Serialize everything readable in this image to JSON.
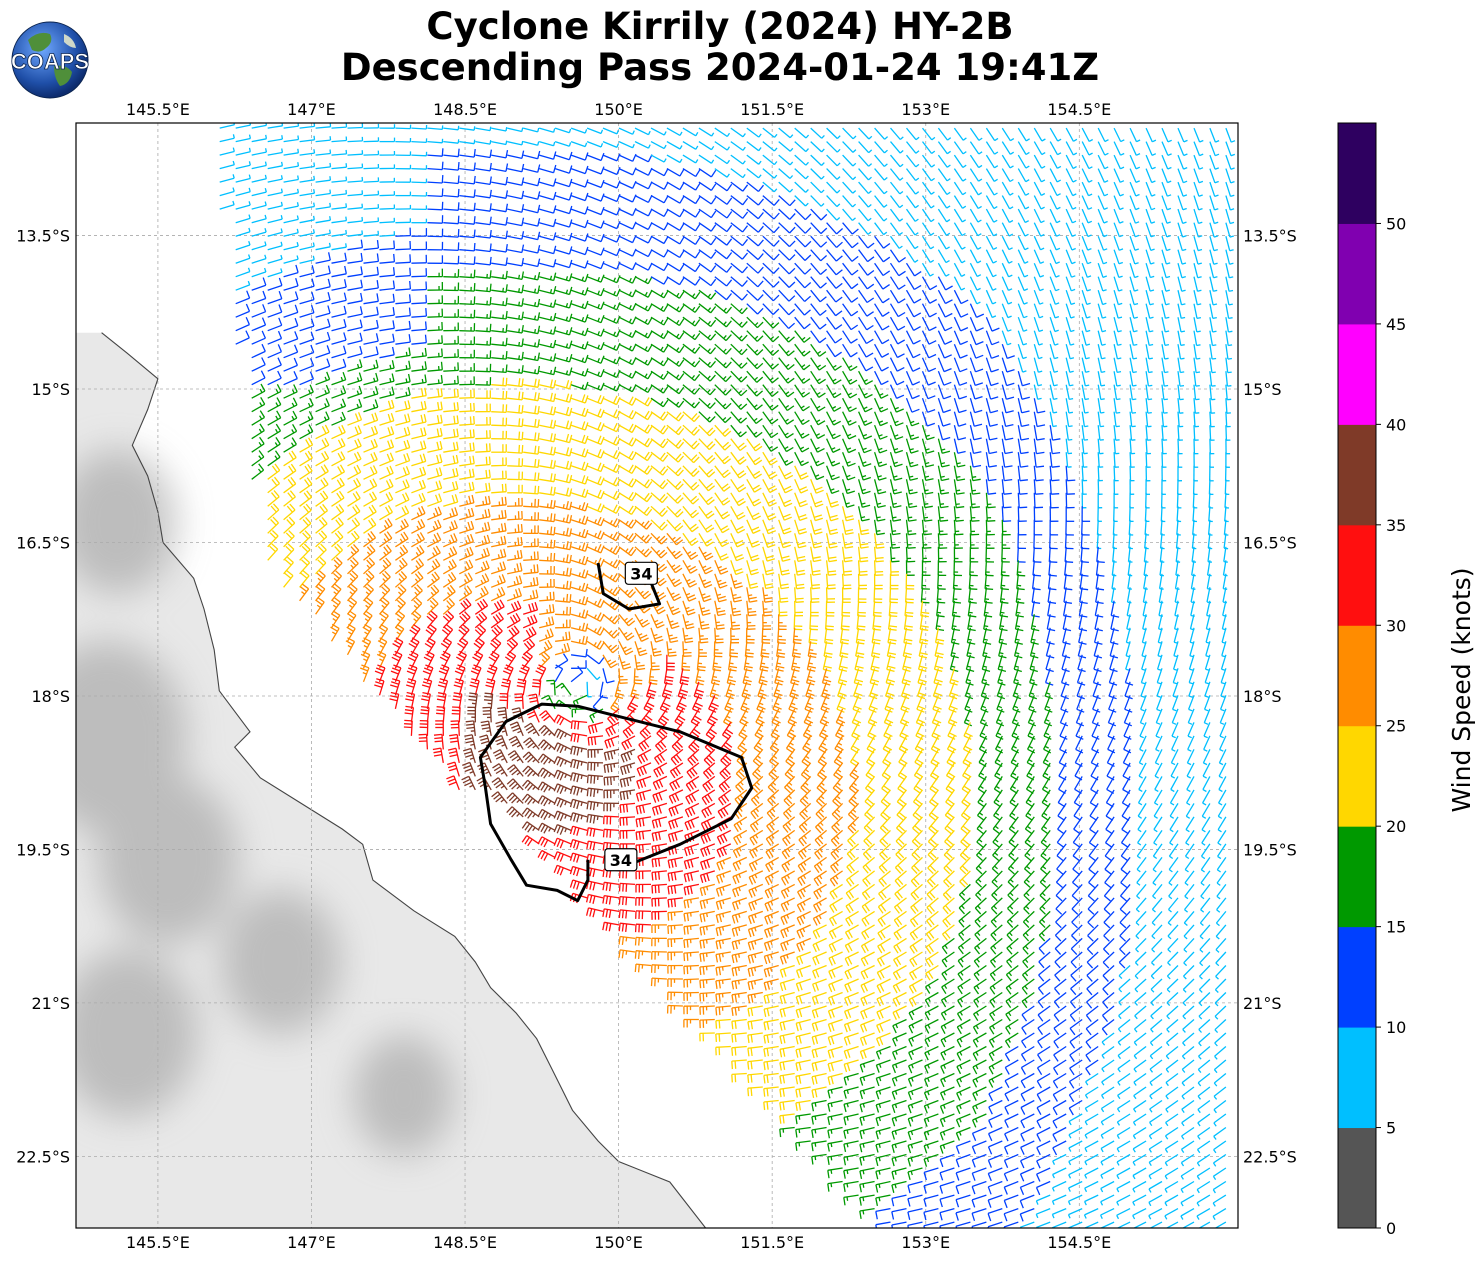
{
  "title": {
    "line1": "Cyclone Kirrily (2024) HY-2B",
    "line2": "Descending Pass 2024-01-24 19:41Z"
  },
  "logo": {
    "text": "COAPS",
    "icon": "globe-logo-icon"
  },
  "map": {
    "lon_range": [
      144.7,
      156.05
    ],
    "lat_range": [
      -23.2,
      -12.4
    ],
    "lon_ticks": [
      {
        "value": 145.5,
        "label": "145.5°E"
      },
      {
        "value": 147.0,
        "label": "147°E"
      },
      {
        "value": 148.5,
        "label": "148.5°E"
      },
      {
        "value": 150.0,
        "label": "150°E"
      },
      {
        "value": 151.5,
        "label": "151.5°E"
      },
      {
        "value": 153.0,
        "label": "153°E"
      },
      {
        "value": 154.5,
        "label": "154.5°E"
      }
    ],
    "lat_ticks": [
      {
        "value": -13.5,
        "label": "13.5°S"
      },
      {
        "value": -15.0,
        "label": "15°S"
      },
      {
        "value": -16.5,
        "label": "16.5°S"
      },
      {
        "value": -18.0,
        "label": "18°S"
      },
      {
        "value": -19.5,
        "label": "19.5°S"
      },
      {
        "value": -21.0,
        "label": "21°S"
      },
      {
        "value": -22.5,
        "label": "22.5°S"
      }
    ],
    "gridlines": true,
    "storm_center": {
      "lon": 149.6,
      "lat": -17.9
    },
    "contour_label": "34",
    "contours": [
      {
        "label": "34",
        "points": [
          [
            149.8,
            -16.7
          ],
          [
            149.85,
            -17.0
          ],
          [
            150.1,
            -17.15
          ],
          [
            150.4,
            -17.1
          ],
          [
            150.3,
            -16.85
          ]
        ]
      },
      {
        "label": "34",
        "points": [
          [
            150.1,
            -19.65
          ],
          [
            150.6,
            -19.45
          ],
          [
            151.1,
            -19.2
          ],
          [
            151.3,
            -18.9
          ],
          [
            151.2,
            -18.6
          ],
          [
            150.6,
            -18.35
          ],
          [
            150.0,
            -18.2
          ],
          [
            149.6,
            -18.1
          ],
          [
            149.25,
            -18.08
          ],
          [
            148.9,
            -18.25
          ],
          [
            148.65,
            -18.6
          ],
          [
            148.7,
            -18.9
          ],
          [
            148.75,
            -19.25
          ],
          [
            148.95,
            -19.6
          ],
          [
            149.1,
            -19.85
          ],
          [
            149.4,
            -19.9
          ],
          [
            149.6,
            -20.0
          ],
          [
            149.7,
            -19.8
          ],
          [
            149.7,
            -19.6
          ]
        ]
      }
    ],
    "coast": [
      [
        144.95,
        -14.45
      ],
      [
        145.2,
        -14.65
      ],
      [
        145.5,
        -14.9
      ],
      [
        145.4,
        -15.2
      ],
      [
        145.25,
        -15.55
      ],
      [
        145.4,
        -15.85
      ],
      [
        145.5,
        -16.2
      ],
      [
        145.55,
        -16.5
      ],
      [
        145.85,
        -16.85
      ],
      [
        145.95,
        -17.15
      ],
      [
        146.05,
        -17.55
      ],
      [
        146.1,
        -17.95
      ],
      [
        146.4,
        -18.35
      ],
      [
        146.25,
        -18.5
      ],
      [
        146.5,
        -18.8
      ],
      [
        146.9,
        -19.05
      ],
      [
        147.3,
        -19.3
      ],
      [
        147.5,
        -19.45
      ],
      [
        147.6,
        -19.8
      ],
      [
        148.0,
        -20.1
      ],
      [
        148.4,
        -20.35
      ],
      [
        148.6,
        -20.6
      ],
      [
        148.75,
        -20.85
      ],
      [
        149.0,
        -21.1
      ],
      [
        149.2,
        -21.35
      ],
      [
        149.35,
        -21.65
      ],
      [
        149.55,
        -22.05
      ],
      [
        149.8,
        -22.35
      ],
      [
        150.0,
        -22.55
      ],
      [
        150.5,
        -22.75
      ],
      [
        150.85,
        -23.2
      ]
    ]
  },
  "wind_field": {
    "units": "knots",
    "center": {
      "lon": 149.6,
      "lat": -17.9
    },
    "swath_east_edge_lon": 156.0,
    "swath_west_edge_north_lon": 146.3,
    "grid_spacing_deg": 0.12
  },
  "colorbar": {
    "label": "Wind Speed (knots)",
    "bins": [
      {
        "min": 0,
        "max": 5,
        "color": "#555555"
      },
      {
        "min": 5,
        "max": 10,
        "color": "#00bfff"
      },
      {
        "min": 10,
        "max": 15,
        "color": "#0040ff"
      },
      {
        "min": 15,
        "max": 20,
        "color": "#009900"
      },
      {
        "min": 20,
        "max": 25,
        "color": "#ffd700"
      },
      {
        "min": 25,
        "max": 30,
        "color": "#ff8c00"
      },
      {
        "min": 30,
        "max": 35,
        "color": "#ff0f0f"
      },
      {
        "min": 35,
        "max": 40,
        "color": "#7f3a28"
      },
      {
        "min": 40,
        "max": 45,
        "color": "#ff00ff"
      },
      {
        "min": 45,
        "max": 50,
        "color": "#8000b0"
      },
      {
        "min": 50,
        "max": 55,
        "color": "#2e0060"
      }
    ],
    "tick_labels": [
      "0",
      "5",
      "10",
      "15",
      "20",
      "25",
      "30",
      "35",
      "40",
      "45",
      "50"
    ]
  }
}
